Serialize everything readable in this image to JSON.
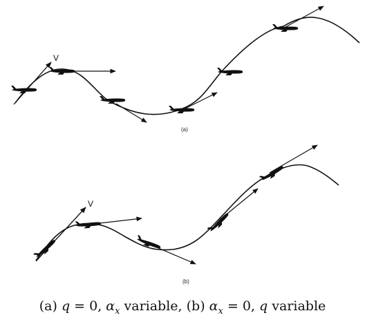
{
  "panel_a": {
    "label": "(a)",
    "velocity_label": "V"
  },
  "panel_b": {
    "label": "(b)",
    "velocity_label": "V"
  },
  "caption": {
    "part_a_prefix": "(a) ",
    "q": "q",
    "equals_zero": " = 0, ",
    "alpha": "α",
    "x_sub": "x",
    "variable": " variable, ",
    "part_b_prefix": "(b) ",
    "variable_end": " variable"
  }
}
